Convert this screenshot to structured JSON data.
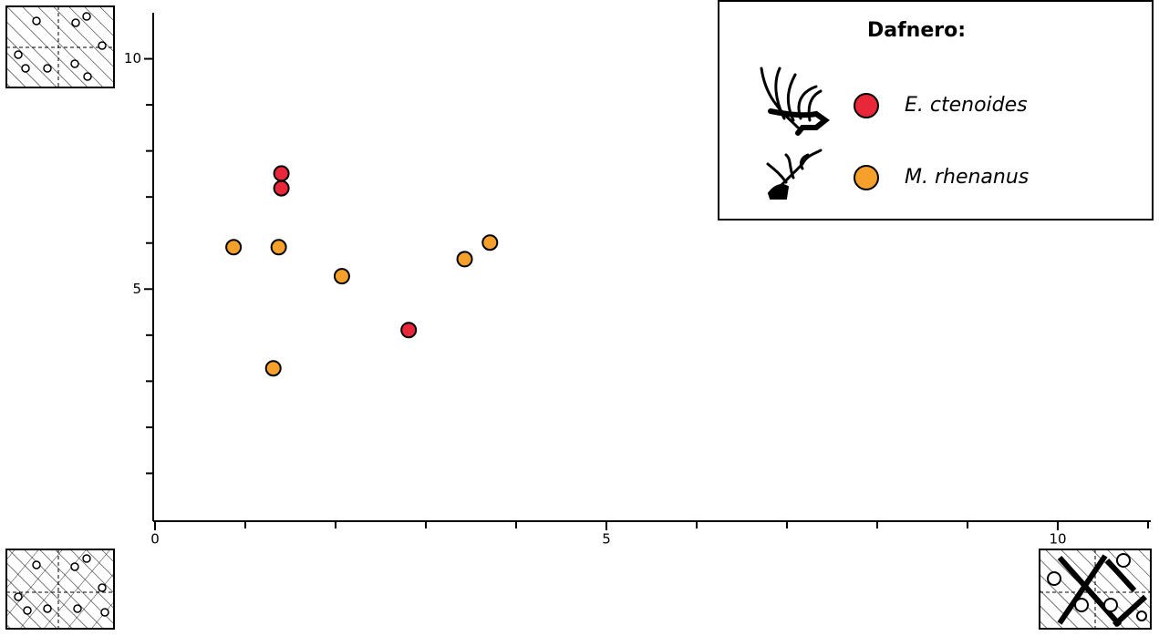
{
  "chart_data": {
    "type": "scatter",
    "legend_title": "Dafnero:",
    "series": [
      {
        "name": "E. ctenoides",
        "color": "#e8283a",
        "x": [
          1.4,
          1.4,
          2.81
        ],
        "y": [
          7.51,
          7.19,
          4.11
        ]
      },
      {
        "name": "M. rhenanus",
        "color": "#f5a02a",
        "x": [
          0.87,
          1.37,
          2.07,
          1.31,
          3.43,
          3.71
        ],
        "y": [
          5.91,
          5.91,
          5.28,
          3.28,
          5.65,
          6.01
        ]
      }
    ],
    "xlim": [
      0,
      11
    ],
    "ylim": [
      0,
      11
    ],
    "xticks": [
      0,
      5,
      10
    ],
    "yticks": [
      5,
      10
    ],
    "xminor_ticks": [
      1,
      2,
      3,
      4,
      6,
      7,
      8,
      9,
      11
    ],
    "yminor_ticks": [
      1,
      2,
      3,
      4,
      6,
      7,
      8,
      9
    ],
    "legend_position": "upper right"
  }
}
